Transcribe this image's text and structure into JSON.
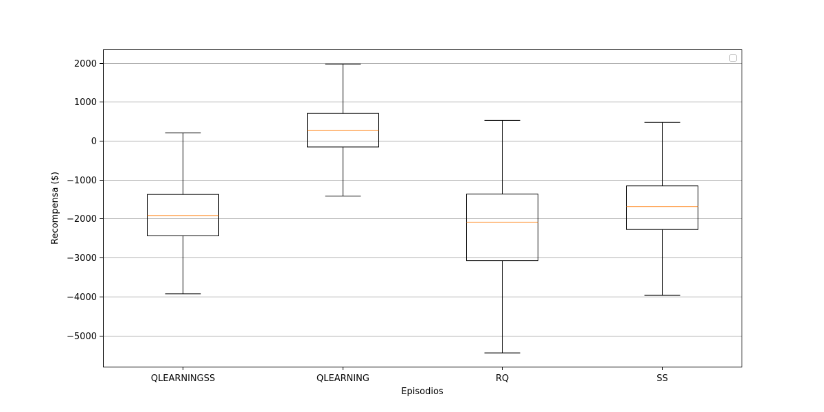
{
  "chart_data": {
    "type": "box",
    "title": "",
    "xlabel": "Episodios",
    "ylabel": "Recompensa ($)",
    "ylim": [
      -5800,
      2350
    ],
    "yticks": [
      2000,
      1000,
      0,
      -1000,
      -2000,
      -3000,
      -4000,
      -5000
    ],
    "ytick_labels": [
      "2000",
      "1000",
      "0",
      "−1000",
      "−2000",
      "−3000",
      "−4000",
      "−5000"
    ],
    "grid": "horizontal",
    "legend": "top-right (empty)",
    "categories": [
      "QLEARNINGSS",
      "QLEARNING",
      "RQ",
      "SS"
    ],
    "boxes": [
      {
        "category": "QLEARNINGSS",
        "whisker_low": -3930,
        "q1": -2440,
        "median": -1920,
        "q3": -1380,
        "whisker_high": 200
      },
      {
        "category": "QLEARNING",
        "whisker_low": -1420,
        "q1": -160,
        "median": 260,
        "q3": 700,
        "whisker_high": 1970
      },
      {
        "category": "RQ",
        "whisker_low": -5450,
        "q1": -3080,
        "median": -2090,
        "q3": -1370,
        "whisker_high": 520
      },
      {
        "category": "SS",
        "whisker_low": -3970,
        "q1": -2280,
        "median": -1690,
        "q3": -1160,
        "whisker_high": 470
      }
    ],
    "colors": {
      "box": "#000000",
      "median": "#ff7f0e",
      "grid": "#b0b0b0"
    }
  }
}
